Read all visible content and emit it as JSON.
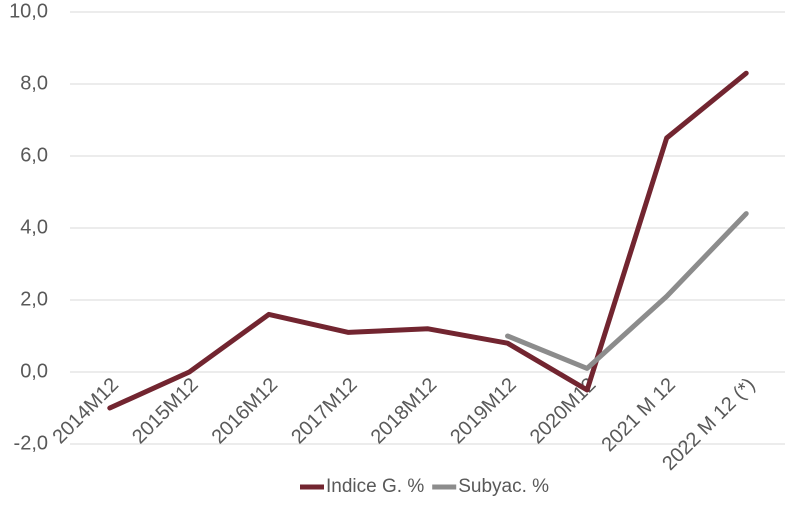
{
  "chart_data": {
    "type": "line",
    "categories": [
      "2014M12",
      "2015M12",
      "2016M12",
      "2017M12",
      "2018M12",
      "2019M12",
      "2020M12",
      "2021 M 12",
      "2022 M 12 (*)"
    ],
    "series": [
      {
        "name": "Indice G. %",
        "color": "#722530",
        "values": [
          -1.0,
          0.0,
          1.6,
          1.1,
          1.2,
          0.8,
          -0.5,
          6.5,
          8.3
        ]
      },
      {
        "name": "Subyac. %",
        "color": "#8c8c8c",
        "values": [
          null,
          null,
          null,
          null,
          null,
          1.0,
          0.1,
          2.1,
          4.4
        ]
      }
    ],
    "ylim": [
      -2,
      10
    ],
    "yticks": [
      {
        "value": -2,
        "label": "-2,0"
      },
      {
        "value": 0,
        "label": "0,0"
      },
      {
        "value": 2,
        "label": "2,0"
      },
      {
        "value": 4,
        "label": "4,0"
      },
      {
        "value": 6,
        "label": "6,0"
      },
      {
        "value": 8,
        "label": "8,0"
      },
      {
        "value": 10,
        "label": "10,0"
      }
    ],
    "grid": true,
    "legend": "bottom"
  }
}
